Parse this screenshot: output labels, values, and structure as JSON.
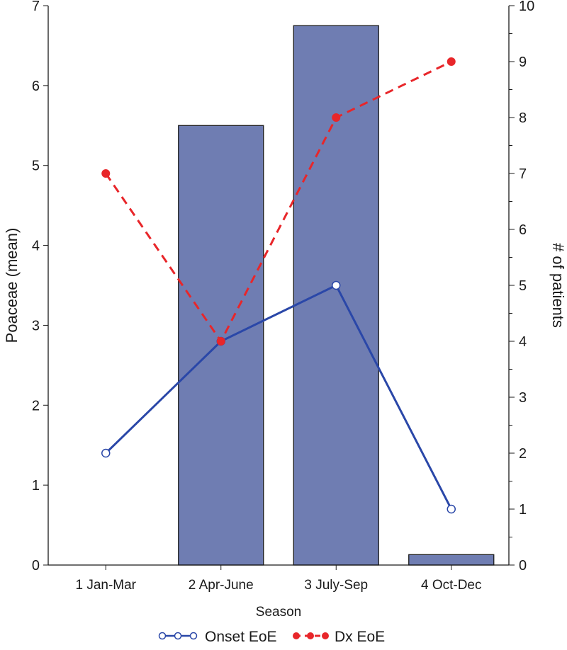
{
  "chart_data": {
    "type": "bar+line",
    "categories": [
      "1 Jan-Mar",
      "2 Apr-June",
      "3 July-Sep",
      "4 Oct-Dec"
    ],
    "bars": {
      "name": "Poaceae (mean)",
      "axis": "left",
      "values": [
        0,
        5.5,
        6.75,
        0.13
      ],
      "color": "#6f7db2"
    },
    "series": [
      {
        "name": "Onset EoE",
        "axis": "right",
        "values": [
          2,
          4,
          5,
          1
        ],
        "color": "#2a47a8",
        "style": "solid",
        "marker": "open-circle"
      },
      {
        "name": "Dx EoE",
        "axis": "right",
        "values": [
          7,
          4,
          8,
          9
        ],
        "color": "#e8262a",
        "style": "dashed",
        "marker": "filled-circle"
      }
    ],
    "xlabel": "Season",
    "ylabel_left": "Poaceae (mean)",
    "ylabel_right": "# of patients",
    "ylim_left": [
      0,
      7
    ],
    "ylim_right": [
      0,
      10
    ],
    "yticks_left": [
      "0",
      "1",
      "2",
      "3",
      "4",
      "5",
      "6",
      "7"
    ],
    "yticks_right": [
      "0",
      "1",
      "2",
      "3",
      "4",
      "5",
      "6",
      "7",
      "8",
      "9",
      "10"
    ],
    "legend_position": "bottom",
    "grid": false
  }
}
